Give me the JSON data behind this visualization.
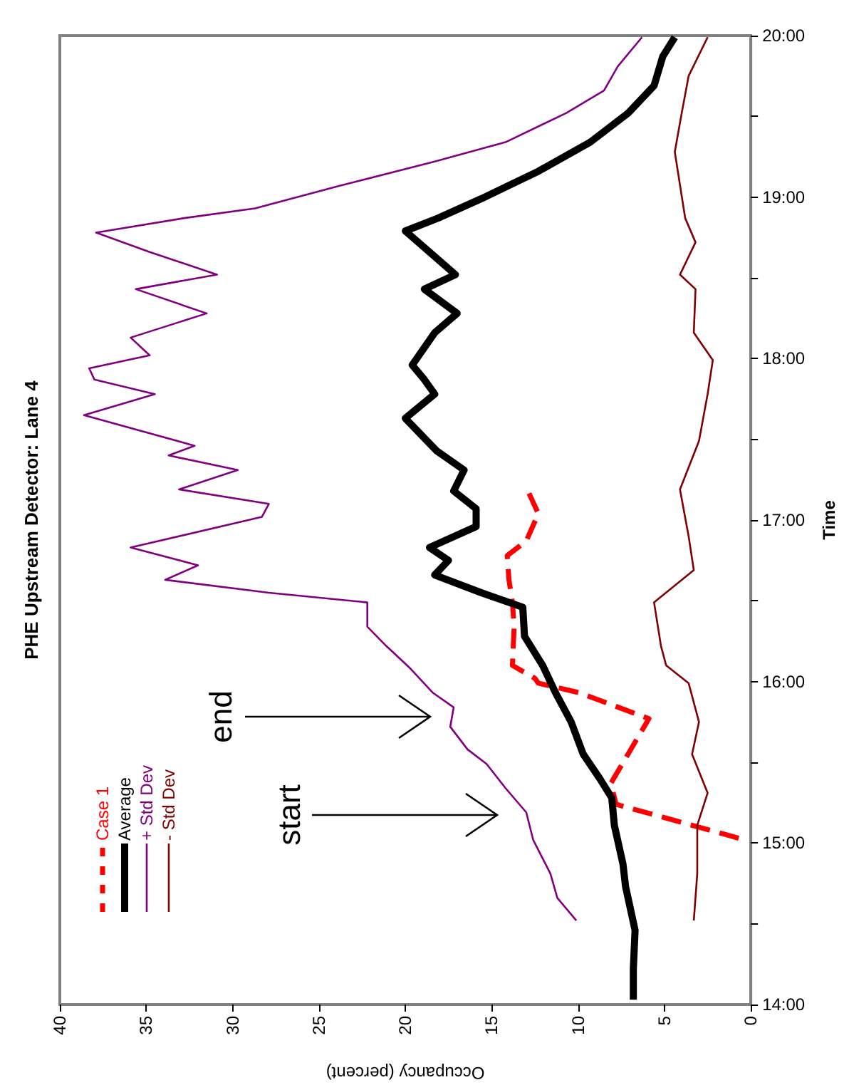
{
  "chart_data": {
    "type": "line",
    "title": "PHE Upstream Detector: Lane 4",
    "xlabel": "Occupancy (percent)",
    "ylabel": "Time",
    "xlim": [
      40,
      0
    ],
    "xticks": [
      40,
      35,
      30,
      25,
      20,
      15,
      10,
      5,
      0
    ],
    "ylim": [
      14,
      20
    ],
    "yticks": [
      {
        "value": 14,
        "label": "14:00"
      },
      {
        "value": 14.5,
        "label": null
      },
      {
        "value": 15,
        "label": "15:00"
      },
      {
        "value": 15.5,
        "label": null
      },
      {
        "value": 16,
        "label": "16:00"
      },
      {
        "value": 16.5,
        "label": null
      },
      {
        "value": 17,
        "label": "17:00"
      },
      {
        "value": 17.5,
        "label": null
      },
      {
        "value": 18,
        "label": "18:00"
      },
      {
        "value": 18.5,
        "label": null
      },
      {
        "value": 19,
        "label": "19:00"
      },
      {
        "value": 19.5,
        "label": null
      },
      {
        "value": 20,
        "label": "20:00"
      }
    ],
    "grid": false,
    "legend": "bottom left",
    "annotations": [
      "start",
      "end"
    ],
    "series": [
      {
        "name": "Case 1",
        "color": "#ff0000",
        "line_style": "dashed",
        "x": [
          0.7,
          7.8,
          8.1,
          5.9,
          9.9,
          12.3,
          12.5,
          13.8,
          13.7,
          13.8,
          14.0,
          14.1,
          13.0,
          12.3,
          12.9
        ],
        "values": [
          15.03,
          15.24,
          15.37,
          15.77,
          15.93,
          15.99,
          16.02,
          16.1,
          16.34,
          16.49,
          16.63,
          16.78,
          16.87,
          17.04,
          17.18
        ]
      },
      {
        "name": "Average",
        "color": "#000000",
        "line_style": "solid",
        "x": [
          6.8,
          6.8,
          6.7,
          7.25,
          7.4,
          7.9,
          8.05,
          8.75,
          9.7,
          10.4,
          11.3,
          12.05,
          13.1,
          13.2,
          15.6,
          18.3,
          17.5,
          18.6,
          15.9,
          15.9,
          17.2,
          16.6,
          18.2,
          20.0,
          18.3,
          18.9,
          19.6,
          18.3,
          17.0,
          18.9,
          17.1,
          18.6,
          20.0,
          18.1,
          15.6,
          12.3,
          9.3,
          7.1,
          5.6,
          5.1,
          4.4
        ],
        "values": [
          14.03,
          14.22,
          14.46,
          14.73,
          14.87,
          15.11,
          15.28,
          15.4,
          15.55,
          15.75,
          15.93,
          16.1,
          16.28,
          16.46,
          16.55,
          16.66,
          16.75,
          16.83,
          16.96,
          17.07,
          17.18,
          17.31,
          17.43,
          17.63,
          17.78,
          17.87,
          17.96,
          18.16,
          18.28,
          18.43,
          18.52,
          18.66,
          18.79,
          18.87,
          18.99,
          19.16,
          19.34,
          19.52,
          19.69,
          19.87,
          19.99
        ]
      },
      {
        "name": "+ Std Dev",
        "color": "#800080",
        "line_style": "solid",
        "x": [
          10.1,
          11.2,
          11.6,
          12.6,
          13.0,
          14.2,
          15.3,
          16.4,
          17.4,
          17.2,
          18.4,
          19.7,
          21.1,
          22.2,
          22.2,
          27.9,
          33.9,
          32.0,
          35.9,
          28.3,
          27.9,
          33.1,
          29.7,
          33.7,
          32.2,
          38.6,
          34.5,
          38.0,
          38.3,
          34.8,
          35.9,
          31.5,
          35.6,
          30.9,
          34.8,
          37.9,
          32.8,
          28.7,
          23.8,
          18.3,
          14.2,
          10.7,
          8.5,
          7.7,
          6.3
        ],
        "values": [
          14.52,
          14.66,
          14.81,
          15.02,
          15.19,
          15.34,
          15.49,
          15.58,
          15.72,
          15.84,
          15.93,
          16.08,
          16.22,
          16.34,
          16.49,
          16.55,
          16.63,
          16.72,
          16.83,
          17.02,
          17.1,
          17.19,
          17.31,
          17.4,
          17.46,
          17.65,
          17.78,
          17.87,
          17.94,
          18.02,
          18.13,
          18.28,
          18.43,
          18.52,
          18.66,
          18.78,
          18.87,
          18.93,
          19.07,
          19.22,
          19.34,
          19.52,
          19.66,
          19.81,
          19.99
        ]
      },
      {
        "name": "- Std Dev",
        "color": "#800000",
        "line_style": "solid",
        "x": [
          3.3,
          3.1,
          3.1,
          2.5,
          3.4,
          3.0,
          3.6,
          4.9,
          5.2,
          5.6,
          3.3,
          3.6,
          4.1,
          3.0,
          2.5,
          2.2,
          3.3,
          3.2,
          4.1,
          3.2,
          3.8,
          4.4,
          4.0,
          3.6,
          2.5
        ],
        "values": [
          14.52,
          14.81,
          15.11,
          15.31,
          15.55,
          15.75,
          15.99,
          16.1,
          16.22,
          16.49,
          16.69,
          16.9,
          17.19,
          17.49,
          17.78,
          17.99,
          18.16,
          18.43,
          18.52,
          18.72,
          18.87,
          19.28,
          19.52,
          19.75,
          19.99
        ]
      }
    ]
  }
}
